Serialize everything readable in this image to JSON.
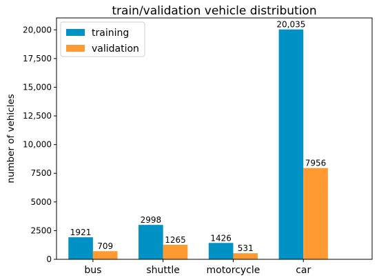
{
  "chart_data": {
    "type": "bar",
    "title": "train/validation vehicle distribution",
    "xlabel": "",
    "ylabel": "number of vehicles",
    "categories": [
      "bus",
      "shuttle",
      "motorcycle",
      "car"
    ],
    "series": [
      {
        "name": "training",
        "color": "#0092c5",
        "values": [
          1921,
          2998,
          1426,
          20035
        ],
        "labels": [
          "1921",
          "2998",
          "1426",
          "20,035"
        ]
      },
      {
        "name": "validation",
        "color": "#ff9a33",
        "values": [
          709,
          1265,
          531,
          7956
        ],
        "labels": [
          "709",
          "1265",
          "531",
          "7956"
        ]
      }
    ],
    "ylim": [
      0,
      21037
    ],
    "yticks": [
      0,
      2500,
      5000,
      7500,
      10000,
      12500,
      15000,
      17500,
      20000
    ],
    "ytick_labels": [
      "0",
      "2500",
      "5000",
      "7500",
      "10,000",
      "12,500",
      "15,000",
      "17,500",
      "20,000"
    ],
    "legend_position": "top-left",
    "grid": false
  }
}
